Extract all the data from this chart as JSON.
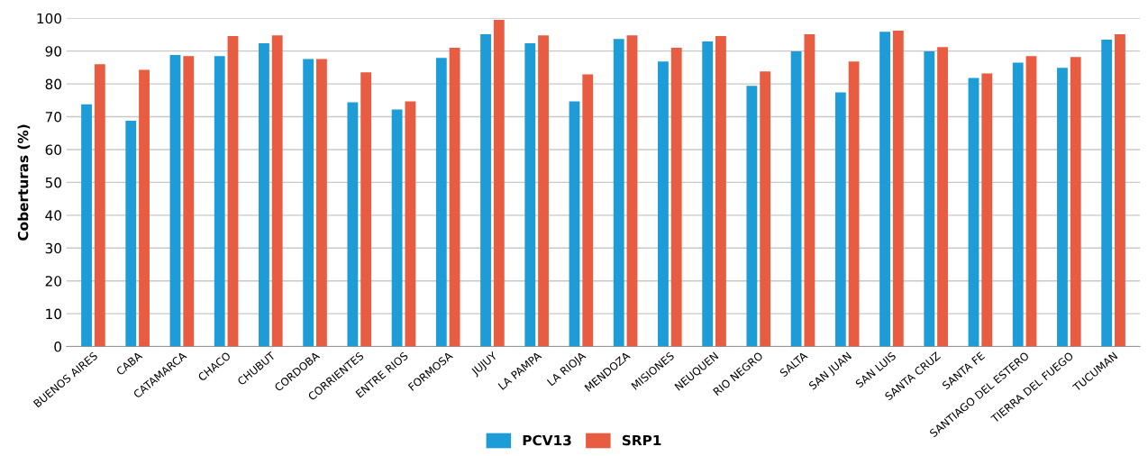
{
  "chart_data": {
    "type": "bar",
    "ylabel": "Coberturas (%)",
    "categories": [
      "BUENOS AIRES",
      "CABA",
      "CATAMARCA",
      "CHACO",
      "CHUBUT",
      "CORDOBA",
      "CORRIENTES",
      "ENTRE RIOS",
      "FORMOSA",
      "JUJUY",
      "LA PAMPA",
      "LA RIOJA",
      "MENDOZA",
      "MISIONES",
      "NEUQUEN",
      "RIO NEGRO",
      "SALTA",
      "SAN JUAN",
      "SAN LUIS",
      "SANTA CRUZ",
      "SANTA FE",
      "SANTIAGO DEL ESTERO",
      "TIERRA DEL FUEGO",
      "TUCUMAN"
    ],
    "series": [
      {
        "name": "PCV13",
        "color": "#1e9cd8",
        "values": [
          73.8,
          68.8,
          88.8,
          88.5,
          92.4,
          87.6,
          74.4,
          72.2,
          87.9,
          95.1,
          92.4,
          74.7,
          93.7,
          86.8,
          92.9,
          79.4,
          89.9,
          77.4,
          95.9,
          89.9,
          81.8,
          86.5,
          84.9,
          93.5
        ]
      },
      {
        "name": "SRP1",
        "color": "#e85c41",
        "values": [
          86.0,
          84.3,
          88.5,
          94.6,
          94.8,
          87.6,
          83.5,
          74.7,
          91.0,
          99.5,
          94.8,
          82.9,
          94.8,
          91.0,
          94.6,
          83.8,
          95.1,
          86.8,
          96.2,
          91.2,
          83.2,
          88.5,
          88.2,
          95.1
        ]
      }
    ],
    "ylim": [
      0,
      100
    ],
    "yticks": [
      0,
      10,
      20,
      30,
      40,
      50,
      60,
      70,
      80,
      90,
      100
    ],
    "grid": "y",
    "legend": "bottom"
  }
}
